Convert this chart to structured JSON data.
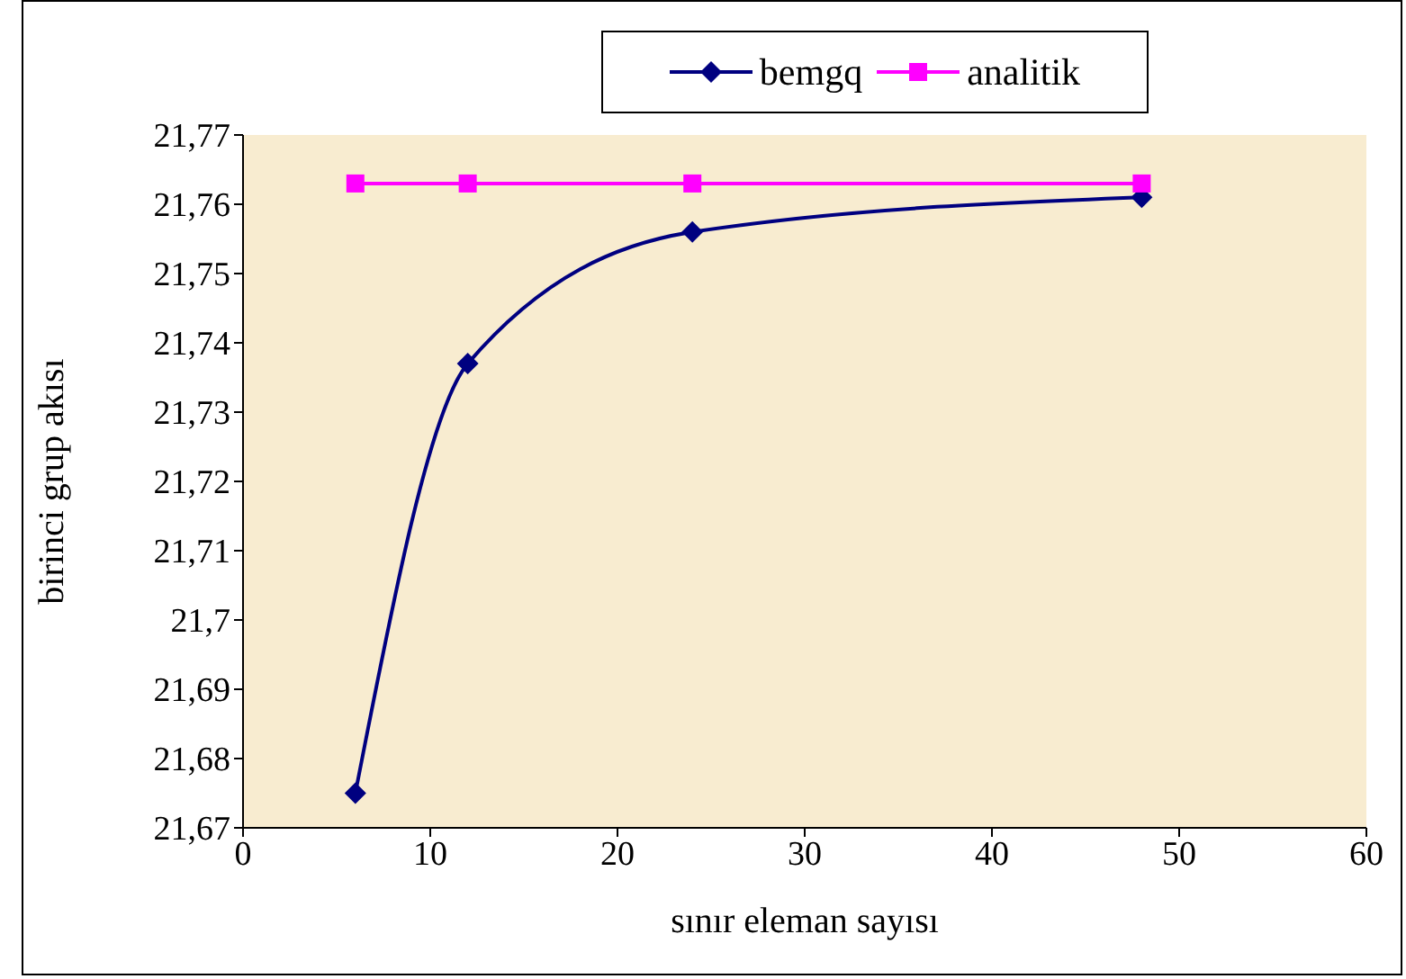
{
  "chart_data": {
    "type": "line",
    "xlabel": "sınır eleman sayısı",
    "ylabel": "birinci grup akısı",
    "x": [
      6,
      12,
      24,
      48
    ],
    "series": [
      {
        "name": "bemgq",
        "color": "#000080",
        "values": [
          21.675,
          21.737,
          21.756,
          21.761
        ],
        "marker": "diamond"
      },
      {
        "name": "analitik",
        "color": "#ff00ff",
        "values": [
          21.763,
          21.763,
          21.763,
          21.763
        ],
        "marker": "square"
      }
    ],
    "xlim": [
      0,
      60
    ],
    "xticks": [
      0,
      10,
      20,
      30,
      40,
      50,
      60
    ],
    "ylim": [
      21.67,
      21.77
    ],
    "yticks": [
      {
        "value": 21.67,
        "label": "21,67"
      },
      {
        "value": 21.68,
        "label": "21,68"
      },
      {
        "value": 21.69,
        "label": "21,69"
      },
      {
        "value": 21.7,
        "label": "21,7"
      },
      {
        "value": 21.71,
        "label": "21,71"
      },
      {
        "value": 21.72,
        "label": "21,72"
      },
      {
        "value": 21.73,
        "label": "21,73"
      },
      {
        "value": 21.74,
        "label": "21,74"
      },
      {
        "value": 21.75,
        "label": "21,75"
      },
      {
        "value": 21.76,
        "label": "21,76"
      },
      {
        "value": 21.77,
        "label": "21,77"
      }
    ],
    "grid": false,
    "legend": "top",
    "line_style": "solid"
  }
}
